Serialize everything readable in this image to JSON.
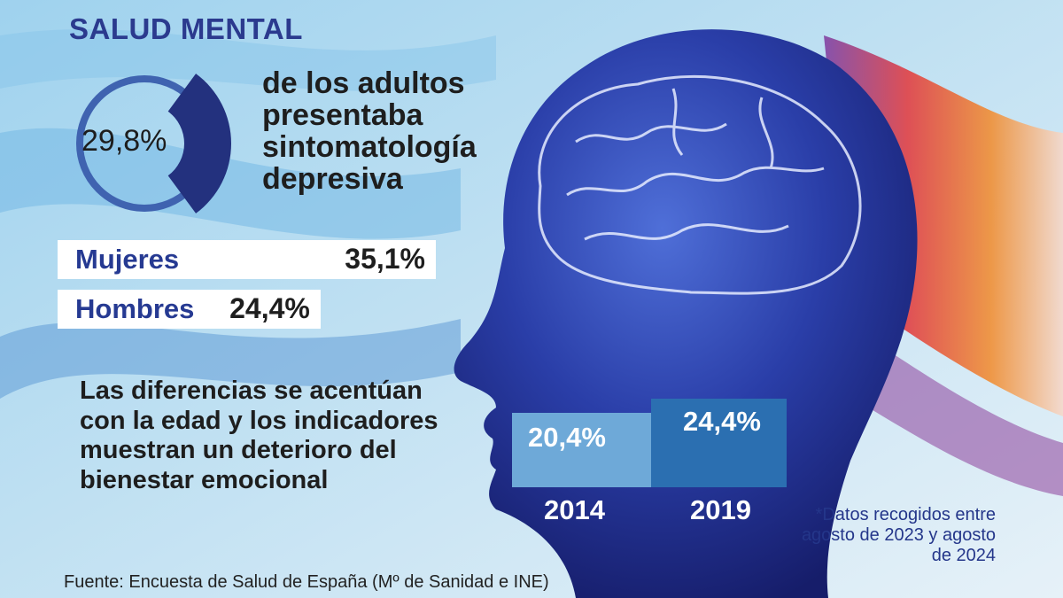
{
  "title": "SALUD MENTAL",
  "description": "de los adultos presentaba sintomatología depresiva",
  "note": "Las diferencias se acentúan con la edad y los indicadores muestran un deterioro del bienestar emocional",
  "source": "Fuente: Encuesta de Salud de España (Mº de Sanidad e INE)",
  "footnote": "*Datos recogidos entre agosto de 2023 y agosto de 2024",
  "colors": {
    "title": "#2b3a8e",
    "donut_ring": "#3f63b0",
    "donut_sector": "#23317e",
    "bar_2014": "#6ea9d8",
    "bar_2019": "#2b6fb1",
    "gender_bar": "#ffffff"
  },
  "chart_data": [
    {
      "type": "pie",
      "variant": "donut",
      "value": 29.8,
      "max": 100,
      "label": "29,8%"
    },
    {
      "type": "bar",
      "orientation": "horizontal",
      "categories": [
        "Mujeres",
        "Hombres"
      ],
      "values": [
        35.1,
        24.4
      ],
      "labels": [
        "35,1%",
        "24,4%"
      ]
    },
    {
      "type": "bar",
      "orientation": "vertical",
      "categories": [
        "2014",
        "2019"
      ],
      "values": [
        20.4,
        24.4
      ],
      "labels": [
        "20,4%",
        "24,4%"
      ]
    }
  ]
}
